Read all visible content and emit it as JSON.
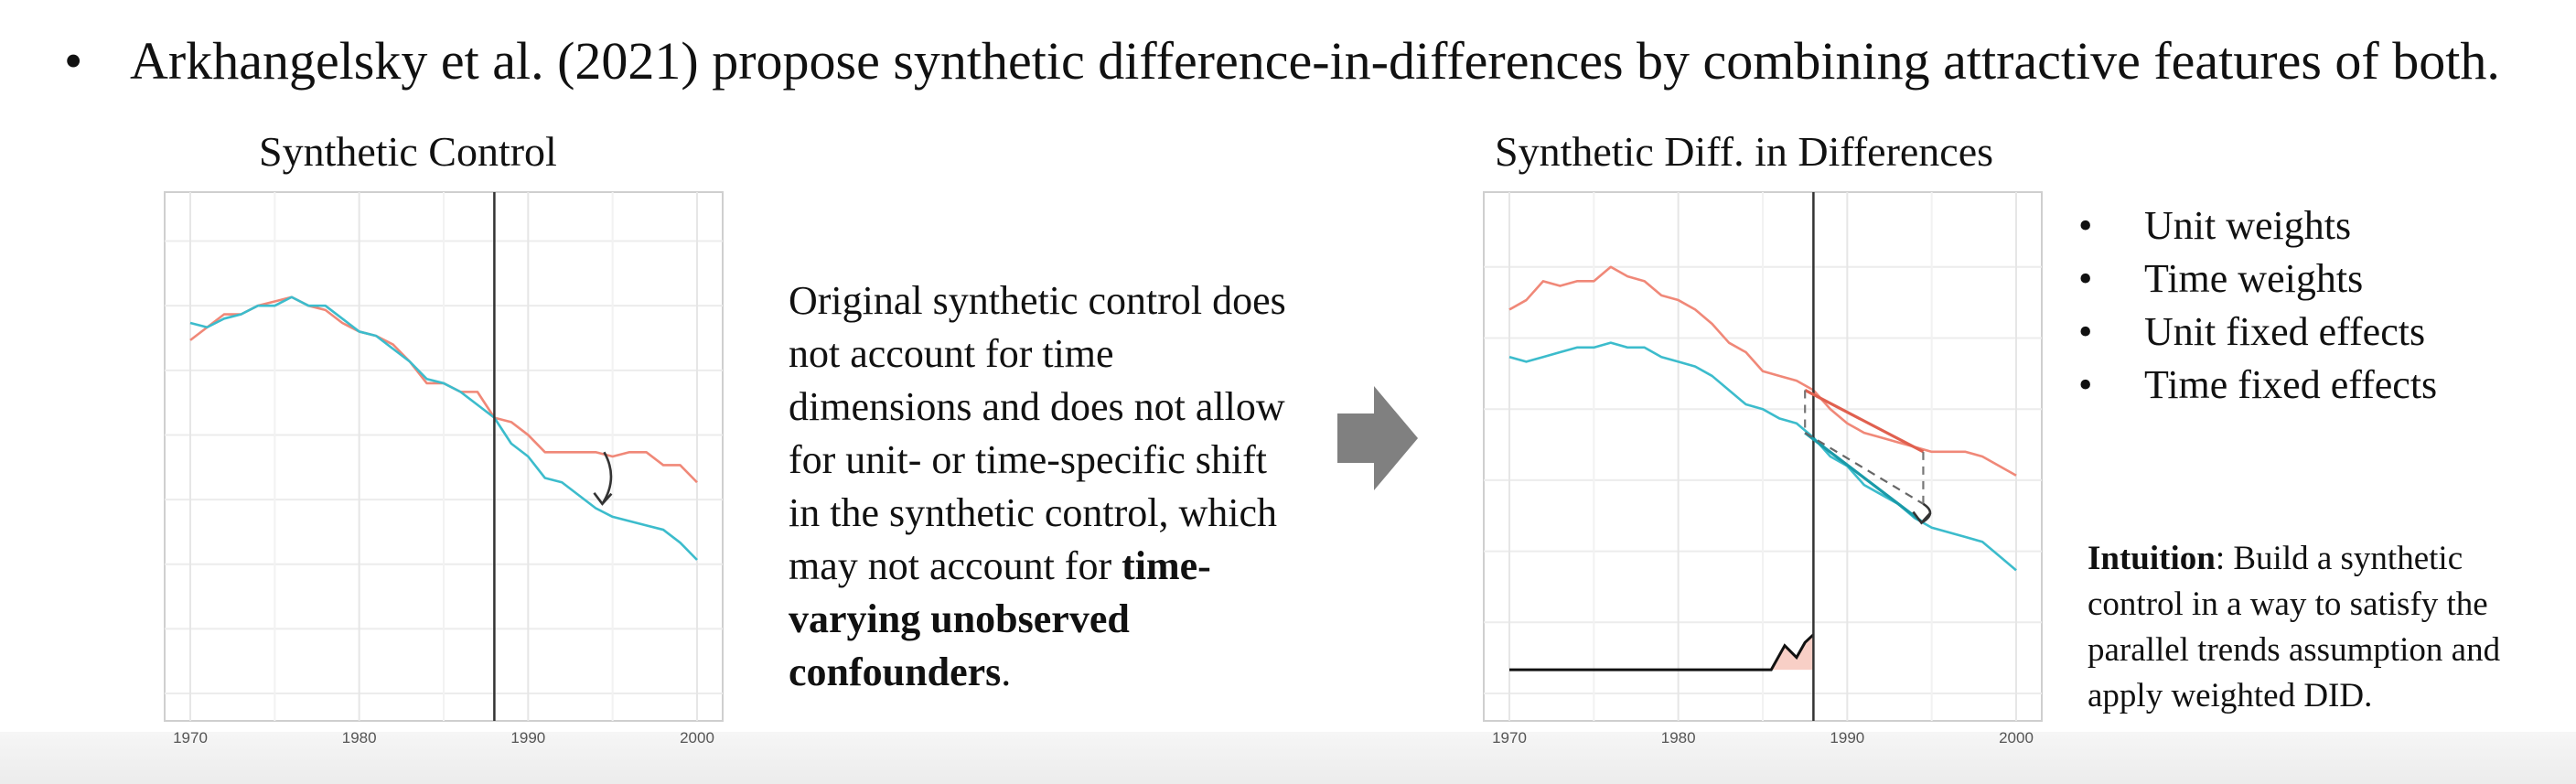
{
  "slide": {
    "bullet_symbol": "•",
    "headline": "Arkhangelsky et al. (2021) propose synthetic difference-in-differences by combining attractive features of both."
  },
  "left_chart": {
    "title": "Synthetic Control"
  },
  "middle": {
    "text_plain": "Original synthetic control does not account for time dimensions and does not allow for unit- or time-specific shift in the synthetic control, which may not account for ",
    "text_bold": "time-varying unobserved confounders",
    "text_end": ".",
    "arrow_color": "#808080"
  },
  "right_chart": {
    "title": "Synthetic Diff. in Differences"
  },
  "bullets": [
    "Unit weights",
    "Time weights",
    "Unit fixed effects",
    "Time fixed effects"
  ],
  "intuition": {
    "label": "Intuition",
    "text": ": Build a synthetic control in a way to satisfy the parallel trends assumption and apply weighted DID."
  },
  "colors": {
    "treated": "#f08878",
    "synthetic": "#3cbccc",
    "sdid_treated_trend": "#e0604f",
    "sdid_control_trend": "#1a9aa8",
    "time_weight_fill": "#f8cfc6",
    "vline": "#333333"
  },
  "chart_data": [
    {
      "type": "line",
      "title": "Synthetic Control",
      "xlim": [
        1970,
        2000
      ],
      "x_ticks": [
        1970,
        1980,
        1990,
        2000
      ],
      "grid": true,
      "treatment_year": 1988,
      "series": [
        {
          "color": "treated",
          "x": [
            1970,
            1971,
            1972,
            1973,
            1974,
            1975,
            1976,
            1977,
            1978,
            1979,
            1980,
            1981,
            1982,
            1983,
            1984,
            1985,
            1986,
            1987,
            1988,
            1989,
            1990,
            1991,
            1992,
            1993,
            1994,
            1995,
            1996,
            1997,
            1998,
            1999,
            2000
          ],
          "y": [
            122,
            125,
            128,
            128,
            130,
            131,
            132,
            130,
            129,
            126,
            124,
            123,
            121,
            117,
            112,
            112,
            110,
            110,
            104,
            103,
            100,
            96,
            96,
            96,
            96,
            95,
            96,
            96,
            93,
            93,
            89
          ]
        },
        {
          "color": "synthetic",
          "x": [
            1970,
            1971,
            1972,
            1973,
            1974,
            1975,
            1976,
            1977,
            1978,
            1979,
            1980,
            1981,
            1982,
            1983,
            1984,
            1985,
            1986,
            1987,
            1988,
            1989,
            1990,
            1991,
            1992,
            1993,
            1994,
            1995,
            1996,
            1997,
            1998,
            1999,
            2000
          ],
          "y": [
            126,
            125,
            127,
            128,
            130,
            130,
            132,
            130,
            130,
            127,
            124,
            123,
            120,
            117,
            113,
            112,
            110,
            107,
            104,
            98,
            95,
            90,
            89,
            86,
            83,
            81,
            80,
            79,
            78,
            75,
            71
          ]
        }
      ],
      "annotations": [
        {
          "type": "curved-arrow",
          "x": 1994.5,
          "y_from": 96,
          "y_to": 84
        }
      ]
    },
    {
      "type": "line",
      "title": "Synthetic Diff. in Differences",
      "xlim": [
        1970,
        2000
      ],
      "x_ticks": [
        1970,
        1980,
        1990,
        2000
      ],
      "grid": true,
      "treatment_year": 1988,
      "series": [
        {
          "color": "treated",
          "x": [
            1970,
            1971,
            1972,
            1973,
            1974,
            1975,
            1976,
            1977,
            1978,
            1979,
            1980,
            1981,
            1982,
            1983,
            1984,
            1985,
            1986,
            1987,
            1988,
            1989,
            1990,
            1991,
            1992,
            1993,
            1994,
            1995,
            1996,
            1997,
            1998,
            1999,
            2000
          ],
          "y": [
            121,
            123,
            127,
            126,
            127,
            127,
            130,
            128,
            127,
            124,
            123,
            121,
            118,
            114,
            112,
            108,
            107,
            106,
            104,
            100,
            97,
            95,
            94,
            93,
            92,
            91,
            91,
            91,
            90,
            88,
            86
          ]
        },
        {
          "color": "synthetic",
          "x": [
            1970,
            1971,
            1972,
            1973,
            1974,
            1975,
            1976,
            1977,
            1978,
            1979,
            1980,
            1981,
            1982,
            1983,
            1984,
            1985,
            1986,
            1987,
            1988,
            1989,
            1990,
            1991,
            1992,
            1993,
            1994,
            1995,
            1996,
            1997,
            1998,
            1999,
            2000
          ],
          "y": [
            111,
            110,
            111,
            112,
            113,
            113,
            114,
            113,
            113,
            111,
            110,
            109,
            107,
            104,
            101,
            100,
            98,
            97,
            94,
            90,
            88,
            84,
            82,
            80,
            77,
            75,
            74,
            73,
            72,
            69,
            66
          ]
        }
      ],
      "trend_segments": [
        {
          "color": "sdid_treated_trend",
          "x": [
            1987.5,
            1994.5
          ],
          "y": [
            104,
            91
          ]
        },
        {
          "color": "sdid_control_trend",
          "x": [
            1987.5,
            1994.5
          ],
          "y": [
            95,
            76
          ]
        },
        {
          "color": "gray-dashed",
          "x": [
            1987.5,
            1994.5
          ],
          "y": [
            95,
            80
          ]
        }
      ],
      "time_weights": {
        "x": [
          1970,
          1985.5,
          1986.3,
          1987.0,
          1987.5,
          1988
        ],
        "y": [
          0,
          0,
          0.55,
          0.28,
          0.62,
          0.8
        ]
      },
      "annotations": [
        {
          "type": "dashed-connector",
          "x": 1987.5,
          "y_from": 104,
          "y_to": 95
        },
        {
          "type": "dashed-connector",
          "x": 1994.5,
          "y_from": 91,
          "y_to": 80
        },
        {
          "type": "curved-arrow",
          "x": 1994.5,
          "y_from": 80,
          "y_to": 76
        }
      ]
    }
  ]
}
